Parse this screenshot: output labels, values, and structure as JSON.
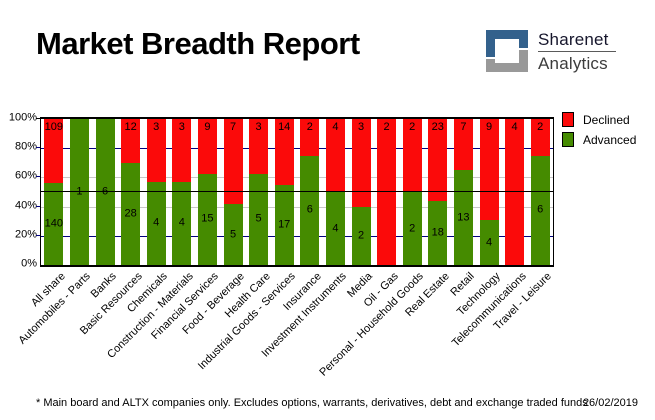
{
  "header": {
    "title": "Market Breadth Report",
    "logo": {
      "line1": "Sharenet",
      "line2": "Analytics",
      "mark_blue": "#33618c",
      "mark_gray": "#999999"
    }
  },
  "legend": {
    "position": "top-right",
    "items": [
      {
        "label": "Declined",
        "color": "#fb0a0a"
      },
      {
        "label": "Advanced",
        "color": "#458b00"
      }
    ]
  },
  "footer": {
    "note": "* Main board and ALTX companies only. Excludes options, warrants, derivatives, debt and exchange traded funds",
    "date": "26/02/2019"
  },
  "chart_data": {
    "type": "bar",
    "stacked": true,
    "normalized": "percent",
    "title": "Market Breadth Report",
    "xlabel": "",
    "ylabel": "",
    "ylim": [
      0,
      100
    ],
    "yticks": [
      "0%",
      "20%",
      "40%",
      "60%",
      "80%",
      "100%"
    ],
    "grid": "on",
    "legend_position": "top-right",
    "reference_line_pct": 50,
    "gridlines": [
      {
        "pct": 20,
        "color": "#000080"
      },
      {
        "pct": 40,
        "color": "#c8c8c8"
      },
      {
        "pct": 60,
        "color": "#c8c8c8"
      },
      {
        "pct": 80,
        "color": "#000080"
      }
    ],
    "categories": [
      "All share",
      "Automobiles - Parts",
      "Banks",
      "Basic Resources",
      "Chemicals",
      "Construction - Materials",
      "Financial Services",
      "Food - Beverage",
      "Health Care",
      "Industrial Goods - Services",
      "Insurance",
      "Investment Instruments",
      "Media",
      "Oil - Gas",
      "Personal - Household Goods",
      "Real Estate",
      "Retail",
      "Technology",
      "Telecommunications",
      "Travel - Leisure"
    ],
    "series": [
      {
        "name": "Declined",
        "color": "#fb0a0a",
        "values": [
          109,
          0,
          0,
          12,
          3,
          3,
          9,
          7,
          3,
          14,
          2,
          4,
          3,
          2,
          2,
          23,
          7,
          9,
          4,
          2
        ]
      },
      {
        "name": "Advanced",
        "color": "#458b00",
        "values": [
          140,
          1,
          6,
          28,
          4,
          4,
          15,
          5,
          5,
          17,
          6,
          4,
          2,
          0,
          2,
          18,
          13,
          4,
          0,
          6
        ]
      }
    ],
    "value_labels": "counts shown inside segments; zero counts hidden"
  }
}
